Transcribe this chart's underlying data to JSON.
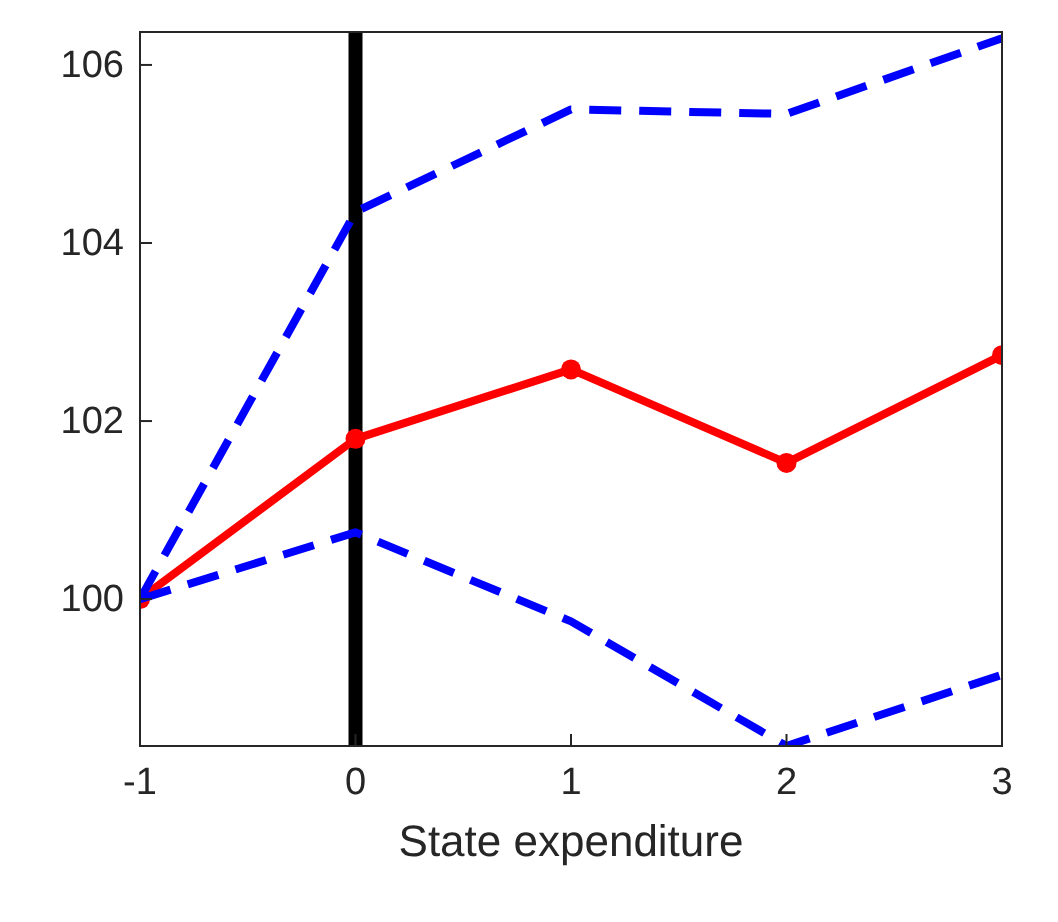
{
  "chart_data": {
    "type": "line",
    "xlabel": "State expenditure",
    "x": [
      -1,
      0,
      1,
      2,
      3
    ],
    "series": [
      {
        "color": "#ff0000",
        "values": [
          100,
          101.8,
          102.58,
          101.53,
          102.74
        ],
        "marker": "circle",
        "line_style": "solid"
      },
      {
        "color": "#0000ff",
        "values": [
          100,
          104.35,
          105.5,
          105.45,
          106.3
        ],
        "marker": "none",
        "line_style": "dashed"
      },
      {
        "color": "#0000ff",
        "values": [
          100,
          100.75,
          99.75,
          98.35,
          99.15
        ],
        "marker": "none",
        "line_style": "dashed"
      }
    ],
    "xlim": [
      -1,
      3
    ],
    "xticks": [
      -1,
      0,
      1,
      2,
      3
    ],
    "ylim": [
      98.35,
      106.37
    ],
    "yticks": [
      100,
      102,
      104,
      106
    ],
    "ref_lines": [
      {
        "axis": "x",
        "value": 0,
        "color": "#000000"
      }
    ]
  }
}
